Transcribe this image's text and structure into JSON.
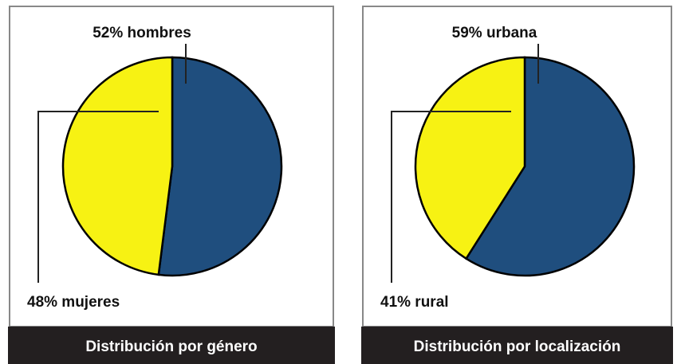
{
  "chart_data": [
    {
      "type": "pie",
      "title": "Distribución por género",
      "values": [
        52,
        48
      ],
      "value_labels": [
        "52% hombres",
        "48% mujeres"
      ],
      "colors": [
        "#1f4e7e",
        "#f7f213"
      ]
    },
    {
      "type": "pie",
      "title": "Distribución por localización",
      "values": [
        59,
        41
      ],
      "value_labels": [
        "59% urbana",
        "41% rural"
      ],
      "colors": [
        "#1f4e7e",
        "#f7f213"
      ]
    }
  ]
}
